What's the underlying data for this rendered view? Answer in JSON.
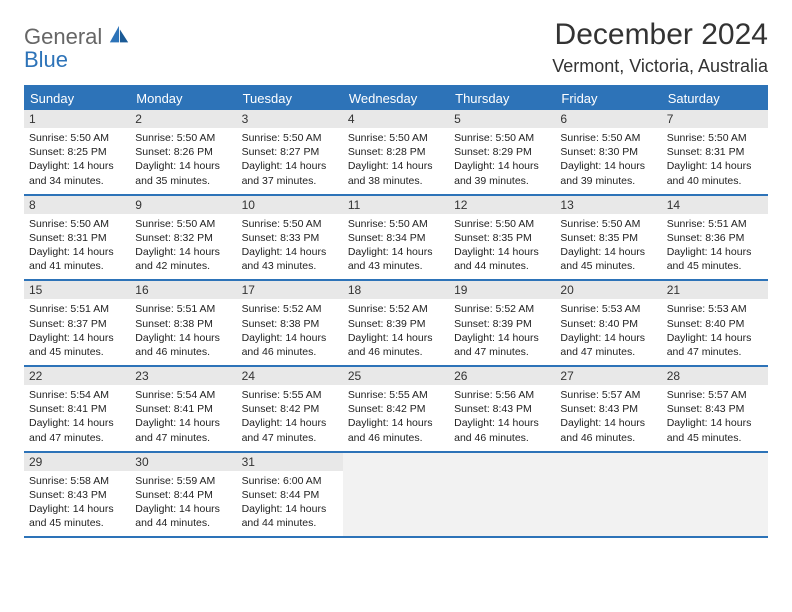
{
  "logo": {
    "word1": "General",
    "word2": "Blue"
  },
  "title": "December 2024",
  "location": "Vermont, Victoria, Australia",
  "colors": {
    "header_bg": "#2d73b8",
    "header_text": "#ffffff",
    "daynum_bg": "#e8e8e8",
    "border": "#2d73b8",
    "empty_bg": "#f2f2f2",
    "body_text": "#222222"
  },
  "layout": {
    "first_weekday_offset": 0,
    "days_in_month": 31,
    "weeks": 5
  },
  "days_of_week": [
    "Sunday",
    "Monday",
    "Tuesday",
    "Wednesday",
    "Thursday",
    "Friday",
    "Saturday"
  ],
  "days": [
    {
      "n": 1,
      "sunrise": "5:50 AM",
      "sunset": "8:25 PM",
      "daylight": "14 hours and 34 minutes."
    },
    {
      "n": 2,
      "sunrise": "5:50 AM",
      "sunset": "8:26 PM",
      "daylight": "14 hours and 35 minutes."
    },
    {
      "n": 3,
      "sunrise": "5:50 AM",
      "sunset": "8:27 PM",
      "daylight": "14 hours and 37 minutes."
    },
    {
      "n": 4,
      "sunrise": "5:50 AM",
      "sunset": "8:28 PM",
      "daylight": "14 hours and 38 minutes."
    },
    {
      "n": 5,
      "sunrise": "5:50 AM",
      "sunset": "8:29 PM",
      "daylight": "14 hours and 39 minutes."
    },
    {
      "n": 6,
      "sunrise": "5:50 AM",
      "sunset": "8:30 PM",
      "daylight": "14 hours and 39 minutes."
    },
    {
      "n": 7,
      "sunrise": "5:50 AM",
      "sunset": "8:31 PM",
      "daylight": "14 hours and 40 minutes."
    },
    {
      "n": 8,
      "sunrise": "5:50 AM",
      "sunset": "8:31 PM",
      "daylight": "14 hours and 41 minutes."
    },
    {
      "n": 9,
      "sunrise": "5:50 AM",
      "sunset": "8:32 PM",
      "daylight": "14 hours and 42 minutes."
    },
    {
      "n": 10,
      "sunrise": "5:50 AM",
      "sunset": "8:33 PM",
      "daylight": "14 hours and 43 minutes."
    },
    {
      "n": 11,
      "sunrise": "5:50 AM",
      "sunset": "8:34 PM",
      "daylight": "14 hours and 43 minutes."
    },
    {
      "n": 12,
      "sunrise": "5:50 AM",
      "sunset": "8:35 PM",
      "daylight": "14 hours and 44 minutes."
    },
    {
      "n": 13,
      "sunrise": "5:50 AM",
      "sunset": "8:35 PM",
      "daylight": "14 hours and 45 minutes."
    },
    {
      "n": 14,
      "sunrise": "5:51 AM",
      "sunset": "8:36 PM",
      "daylight": "14 hours and 45 minutes."
    },
    {
      "n": 15,
      "sunrise": "5:51 AM",
      "sunset": "8:37 PM",
      "daylight": "14 hours and 45 minutes."
    },
    {
      "n": 16,
      "sunrise": "5:51 AM",
      "sunset": "8:38 PM",
      "daylight": "14 hours and 46 minutes."
    },
    {
      "n": 17,
      "sunrise": "5:52 AM",
      "sunset": "8:38 PM",
      "daylight": "14 hours and 46 minutes."
    },
    {
      "n": 18,
      "sunrise": "5:52 AM",
      "sunset": "8:39 PM",
      "daylight": "14 hours and 46 minutes."
    },
    {
      "n": 19,
      "sunrise": "5:52 AM",
      "sunset": "8:39 PM",
      "daylight": "14 hours and 47 minutes."
    },
    {
      "n": 20,
      "sunrise": "5:53 AM",
      "sunset": "8:40 PM",
      "daylight": "14 hours and 47 minutes."
    },
    {
      "n": 21,
      "sunrise": "5:53 AM",
      "sunset": "8:40 PM",
      "daylight": "14 hours and 47 minutes."
    },
    {
      "n": 22,
      "sunrise": "5:54 AM",
      "sunset": "8:41 PM",
      "daylight": "14 hours and 47 minutes."
    },
    {
      "n": 23,
      "sunrise": "5:54 AM",
      "sunset": "8:41 PM",
      "daylight": "14 hours and 47 minutes."
    },
    {
      "n": 24,
      "sunrise": "5:55 AM",
      "sunset": "8:42 PM",
      "daylight": "14 hours and 47 minutes."
    },
    {
      "n": 25,
      "sunrise": "5:55 AM",
      "sunset": "8:42 PM",
      "daylight": "14 hours and 46 minutes."
    },
    {
      "n": 26,
      "sunrise": "5:56 AM",
      "sunset": "8:43 PM",
      "daylight": "14 hours and 46 minutes."
    },
    {
      "n": 27,
      "sunrise": "5:57 AM",
      "sunset": "8:43 PM",
      "daylight": "14 hours and 46 minutes."
    },
    {
      "n": 28,
      "sunrise": "5:57 AM",
      "sunset": "8:43 PM",
      "daylight": "14 hours and 45 minutes."
    },
    {
      "n": 29,
      "sunrise": "5:58 AM",
      "sunset": "8:43 PM",
      "daylight": "14 hours and 45 minutes."
    },
    {
      "n": 30,
      "sunrise": "5:59 AM",
      "sunset": "8:44 PM",
      "daylight": "14 hours and 44 minutes."
    },
    {
      "n": 31,
      "sunrise": "6:00 AM",
      "sunset": "8:44 PM",
      "daylight": "14 hours and 44 minutes."
    }
  ],
  "labels": {
    "sunrise": "Sunrise:",
    "sunset": "Sunset:",
    "daylight": "Daylight:"
  }
}
